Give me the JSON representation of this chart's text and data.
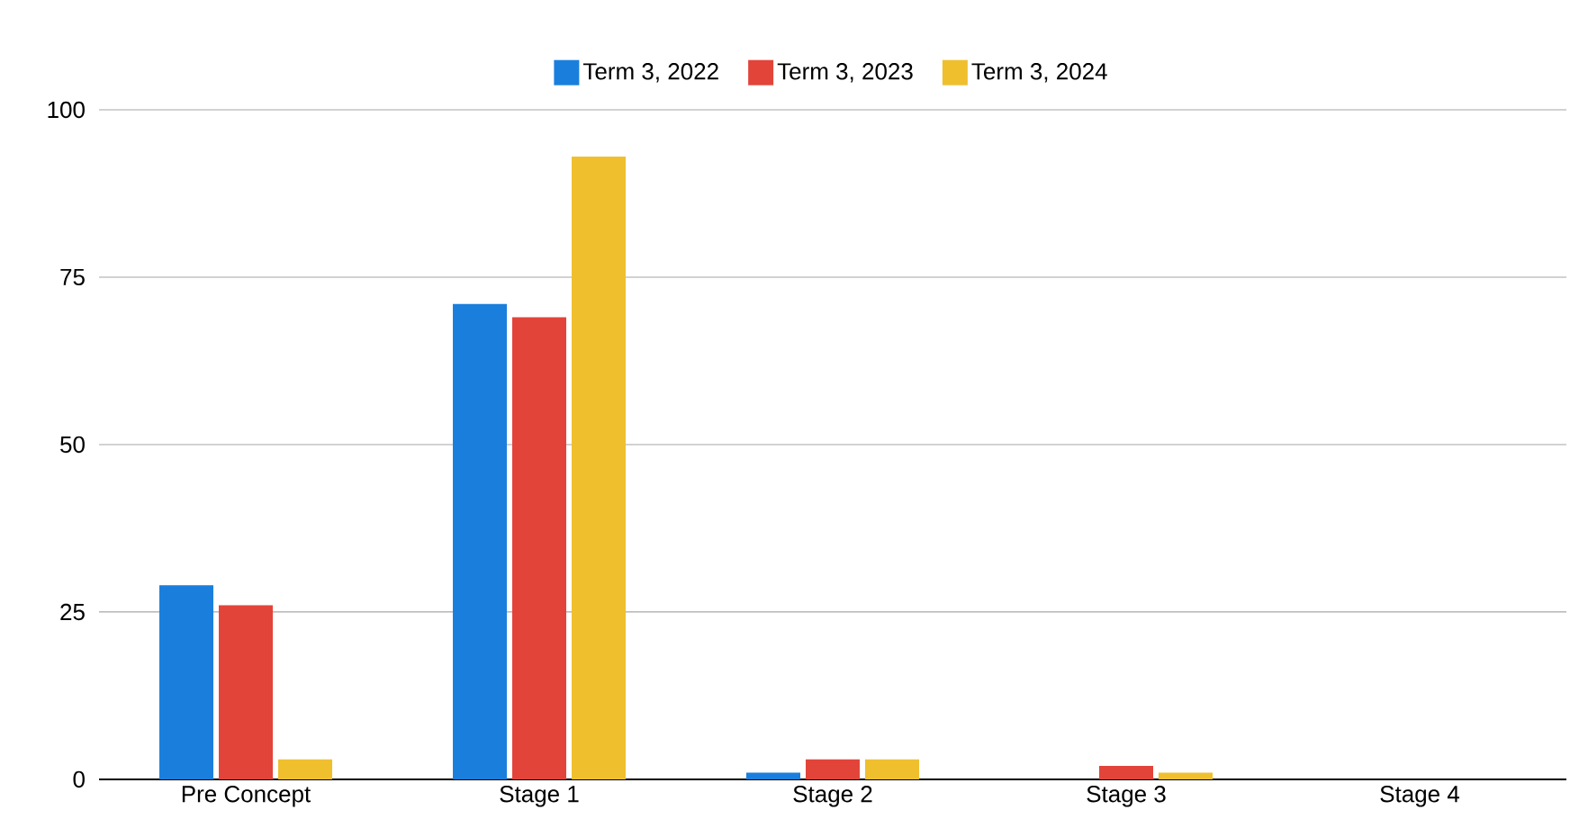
{
  "chart_data": {
    "type": "bar",
    "categories": [
      "Pre Concept",
      "Stage 1",
      "Stage 2",
      "Stage 3",
      "Stage 4"
    ],
    "series": [
      {
        "name": "Term 3, 2022",
        "color": "#1a7fdc",
        "values": [
          29,
          71,
          1,
          0,
          0
        ]
      },
      {
        "name": "Term 3, 2023",
        "color": "#e2443a",
        "values": [
          26,
          69,
          3,
          2,
          0
        ]
      },
      {
        "name": "Term 3, 2024",
        "color": "#efbf2e",
        "values": [
          3,
          93,
          3,
          1,
          0
        ]
      }
    ],
    "ylim": [
      0,
      100
    ],
    "yticks": [
      0,
      25,
      50,
      75,
      100
    ],
    "grid": "y",
    "legend": "top"
  }
}
